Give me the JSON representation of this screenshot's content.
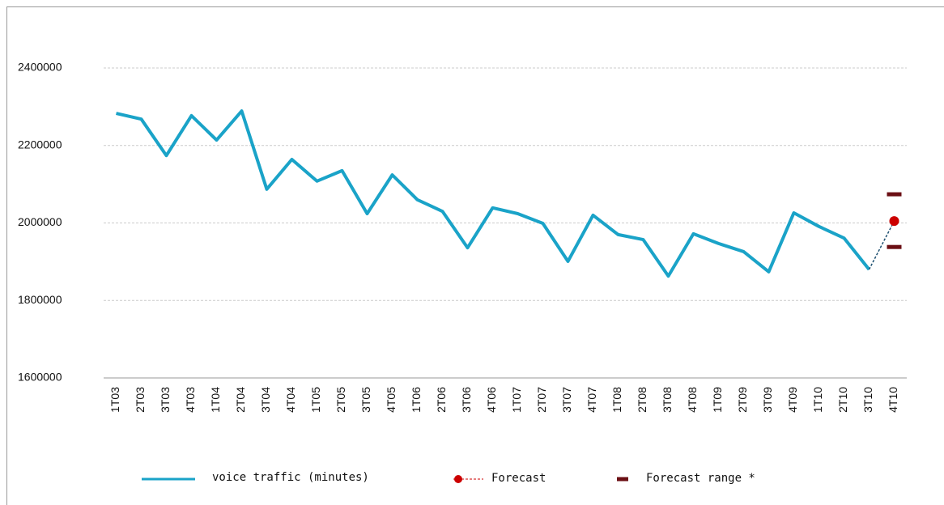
{
  "chart_data": {
    "type": "line",
    "categories": [
      "1T03",
      "2T03",
      "3T03",
      "4T03",
      "1T04",
      "2T04",
      "3T04",
      "4T04",
      "1T05",
      "2T05",
      "3T05",
      "4T05",
      "1T06",
      "2T06",
      "3T06",
      "4T06",
      "1T07",
      "2T07",
      "3T07",
      "4T07",
      "1T08",
      "2T08",
      "3T08",
      "4T08",
      "1T09",
      "2T09",
      "3T09",
      "4T09",
      "1T10",
      "2T10",
      "3T10",
      "4T10"
    ],
    "series": [
      {
        "name": "voice traffic (minutes)",
        "color": "#1aa3c8",
        "values": [
          2283000,
          2268000,
          2174000,
          2277000,
          2214000,
          2289000,
          2087000,
          2164000,
          2108000,
          2135000,
          2024000,
          2124000,
          2060000,
          2030000,
          1936000,
          2039000,
          2024000,
          1999000,
          1901000,
          2020000,
          1970000,
          1957000,
          1863000,
          1972000,
          1947000,
          1926000,
          1874000,
          2026000,
          1991000,
          1961000,
          1880000,
          null
        ]
      },
      {
        "name": "Forecast",
        "color": "#cc0000",
        "values": [
          null,
          null,
          null,
          null,
          null,
          null,
          null,
          null,
          null,
          null,
          null,
          null,
          null,
          null,
          null,
          null,
          null,
          null,
          null,
          null,
          null,
          null,
          null,
          null,
          null,
          null,
          null,
          null,
          null,
          null,
          1880000,
          2005000
        ]
      }
    ],
    "forecast_range": {
      "name": "Forecast range *",
      "color": "#6b0f14",
      "category": "4T10",
      "values": [
        2074000,
        1938000
      ]
    },
    "ylim": [
      1600000,
      2500000
    ],
    "yticks": [
      1600000,
      1800000,
      2000000,
      2200000,
      2400000
    ],
    "grid": true
  }
}
